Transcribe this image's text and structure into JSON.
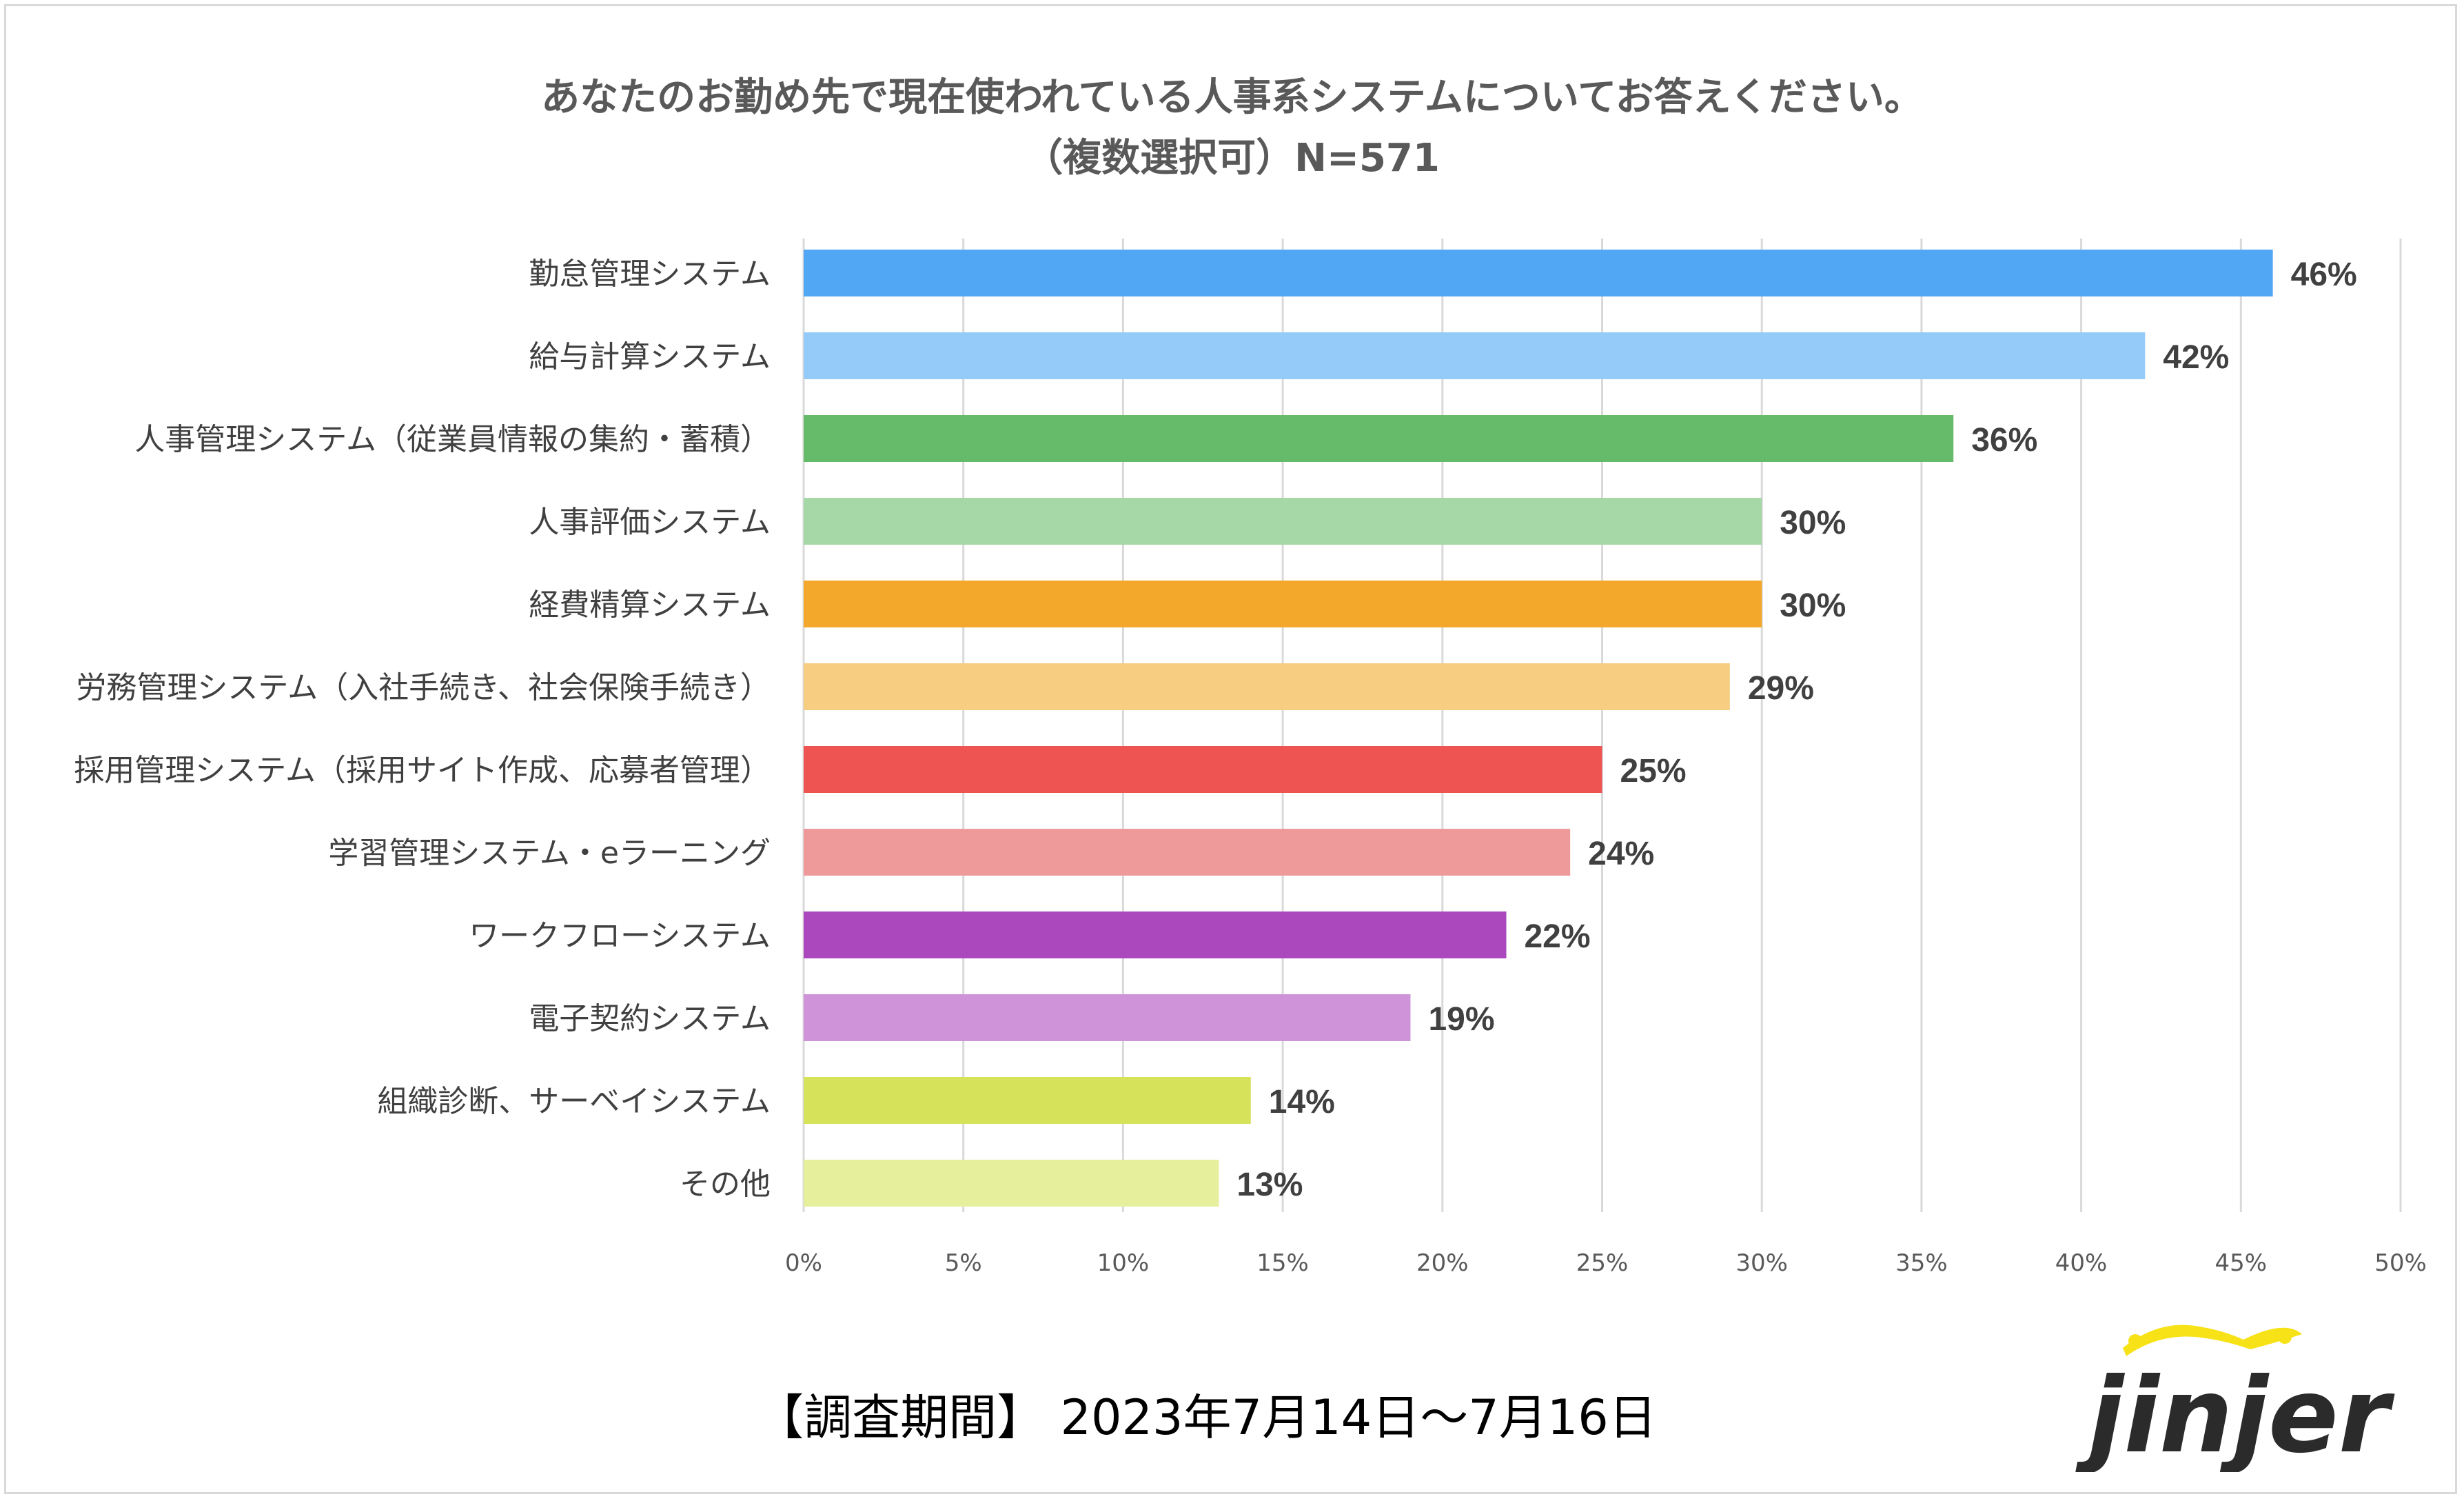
{
  "title_line1": "あなたのお勤め先で現在使われている人事系システムについてお答えください。",
  "title_line2": "（複数選択可）N=571",
  "footer_period": "【調査期間】 2023年7月14日～7月16日",
  "logo_text": "jinjer",
  "chart_data": {
    "type": "bar",
    "orientation": "horizontal",
    "title": "あなたのお勤め先で現在使われている人事系システムについてお答えください。（複数選択可）N=571",
    "xlabel": "",
    "ylabel": "",
    "xlim": [
      0,
      50
    ],
    "x_ticks": [
      "0%",
      "5%",
      "10%",
      "15%",
      "20%",
      "25%",
      "30%",
      "35%",
      "40%",
      "45%",
      "50%"
    ],
    "grid": "vertical",
    "legend": "none",
    "categories": [
      "勤怠管理システム",
      "給与計算システム",
      "人事管理システム（従業員情報の集約・蓄積）",
      "人事評価システム",
      "経費精算システム",
      "労務管理システム（入社手続き、社会保険手続き）",
      "採用管理システム（採用サイト作成、応募者管理）",
      "学習管理システム・eラーニング",
      "ワークフローシステム",
      "電子契約システム",
      "組織診断、サーベイシステム",
      "その他"
    ],
    "values": [
      46,
      42,
      36,
      30,
      30,
      29,
      25,
      24,
      22,
      19,
      14,
      13
    ],
    "value_labels": [
      "46%",
      "42%",
      "36%",
      "30%",
      "30%",
      "29%",
      "25%",
      "24%",
      "22%",
      "19%",
      "14%",
      "13%"
    ],
    "colors": [
      "#52a7f5",
      "#94cbf8",
      "#66bb6a",
      "#a6d7a7",
      "#f4a82b",
      "#f6cd81",
      "#ee5452",
      "#ef9a9a",
      "#ab48bd",
      "#ce93d8",
      "#d6e259",
      "#e6ef9c"
    ]
  }
}
